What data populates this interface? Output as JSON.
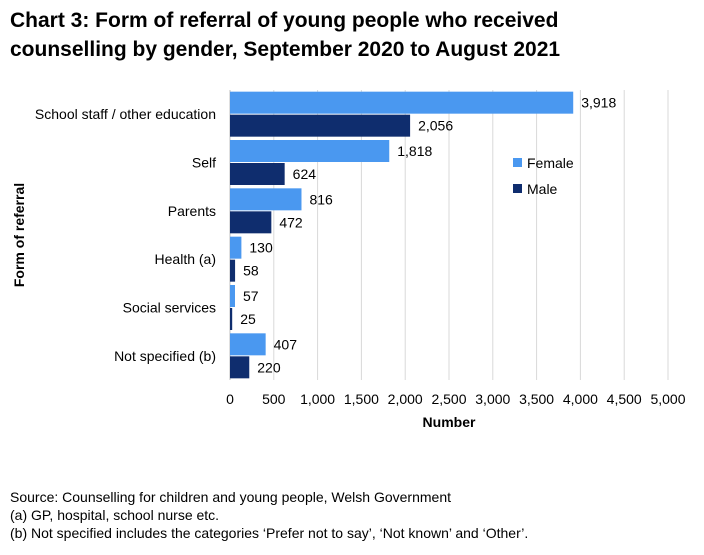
{
  "title_lines": [
    "Chart 3: Form of referral of young people who received",
    "counselling by gender, September 2020 to August 2021"
  ],
  "colors": {
    "female": "#4a98f0",
    "male": "#0f2d6e",
    "grid": "#d9d9d9"
  },
  "chart_data": {
    "type": "bar",
    "orientation": "horizontal",
    "categories": [
      "School staff / other education",
      "Self",
      "Parents",
      "Health (a)",
      "Social services",
      "Not specified (b)"
    ],
    "series": [
      {
        "name": "Female",
        "values": [
          3918,
          1818,
          816,
          130,
          57,
          407
        ],
        "labels": [
          "3,918",
          "1,818",
          "816",
          "130",
          "57",
          "407"
        ]
      },
      {
        "name": "Male",
        "values": [
          2056,
          624,
          472,
          58,
          25,
          220
        ],
        "labels": [
          "2,056",
          "624",
          "472",
          "58",
          "25",
          "220"
        ]
      }
    ],
    "xlabel": "Number",
    "ylabel": "Form of referral",
    "xlim": [
      0,
      5000
    ],
    "xticks": [
      0,
      500,
      1000,
      1500,
      2000,
      2500,
      3000,
      3500,
      4000,
      4500,
      5000
    ],
    "xtick_labels": [
      "0",
      "500",
      "1,000",
      "1,500",
      "2,000",
      "2,500",
      "3,000",
      "3,500",
      "4,000",
      "4,500",
      "5,000"
    ],
    "grid": "vertical",
    "legend": "right"
  },
  "notes": [
    "Source: Counselling for children and young people, Welsh Government",
    "(a) GP, hospital, school nurse etc.",
    "(b) Not specified includes the categories ‘Prefer not to say’, ‘Not known’ and ‘Other’."
  ]
}
